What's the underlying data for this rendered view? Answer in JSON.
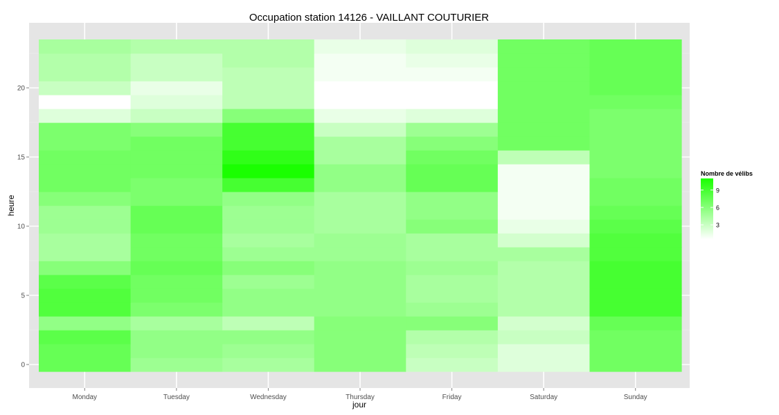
{
  "chart_data": {
    "type": "heatmap",
    "title": "Occupation station 14126 - VAILLANT COUTURIER",
    "xlabel": "jour",
    "ylabel": "heure",
    "categories": [
      "Monday",
      "Tuesday",
      "Wednesday",
      "Thursday",
      "Friday",
      "Saturday",
      "Sunday"
    ],
    "y": [
      0,
      1,
      2,
      3,
      4,
      5,
      6,
      7,
      8,
      9,
      10,
      11,
      12,
      13,
      14,
      15,
      16,
      17,
      18,
      19,
      20,
      21,
      22,
      23
    ],
    "yticks": [
      0,
      5,
      10,
      15,
      20
    ],
    "ylim": [
      -0.5,
      23.5
    ],
    "grid": true,
    "values": [
      [
        7.5,
        5.0,
        4.5,
        6.0,
        3.0,
        2.0,
        7.0
      ],
      [
        7.5,
        5.5,
        5.0,
        6.0,
        3.5,
        2.0,
        7.0
      ],
      [
        8.0,
        5.5,
        5.5,
        6.0,
        4.0,
        3.0,
        7.0
      ],
      [
        5.5,
        4.5,
        3.5,
        6.0,
        6.0,
        2.5,
        7.5
      ],
      [
        8.5,
        6.5,
        5.5,
        5.5,
        5.0,
        4.0,
        9.0
      ],
      [
        8.5,
        7.0,
        5.5,
        5.5,
        4.5,
        4.0,
        9.0
      ],
      [
        8.0,
        7.0,
        5.0,
        5.5,
        4.5,
        4.0,
        9.0
      ],
      [
        6.0,
        7.5,
        6.0,
        5.5,
        5.0,
        4.0,
        9.0
      ],
      [
        4.5,
        7.0,
        5.0,
        5.0,
        4.5,
        4.5,
        8.5
      ],
      [
        4.5,
        7.0,
        4.5,
        5.0,
        4.5,
        2.5,
        8.5
      ],
      [
        5.0,
        7.5,
        5.0,
        4.5,
        6.0,
        1.5,
        8.0
      ],
      [
        5.0,
        7.5,
        5.0,
        4.5,
        5.5,
        1.0,
        7.5
      ],
      [
        6.0,
        6.5,
        5.5,
        4.5,
        5.5,
        1.0,
        7.0
      ],
      [
        7.0,
        6.5,
        9.0,
        5.5,
        7.5,
        1.0,
        7.0
      ],
      [
        7.0,
        7.0,
        11.0,
        5.5,
        7.5,
        1.0,
        6.5
      ],
      [
        7.0,
        7.0,
        10.0,
        4.5,
        7.0,
        3.5,
        6.5
      ],
      [
        6.5,
        7.0,
        9.0,
        4.5,
        6.0,
        7.0,
        6.5
      ],
      [
        6.5,
        6.0,
        9.0,
        3.0,
        5.0,
        7.0,
        6.5
      ],
      [
        2.0,
        3.0,
        6.0,
        1.5,
        2.0,
        7.0,
        6.5
      ],
      [
        0.5,
        2.0,
        3.5,
        0.5,
        0.5,
        7.0,
        7.0
      ],
      [
        3.0,
        1.5,
        3.5,
        0.5,
        0.5,
        7.0,
        7.5
      ],
      [
        4.0,
        3.0,
        3.5,
        1.0,
        1.0,
        7.0,
        7.5
      ],
      [
        4.0,
        3.0,
        4.0,
        1.0,
        1.5,
        7.0,
        7.5
      ],
      [
        4.5,
        4.0,
        4.0,
        1.5,
        2.0,
        7.0,
        7.5
      ]
    ],
    "color_scale": {
      "low": "#ffffff",
      "high": "#1aff00",
      "min": 0.5,
      "max": 11
    },
    "legend": {
      "title": "Nombre de vélibs",
      "placement": "right",
      "ticks": [
        3,
        6,
        9
      ]
    }
  }
}
